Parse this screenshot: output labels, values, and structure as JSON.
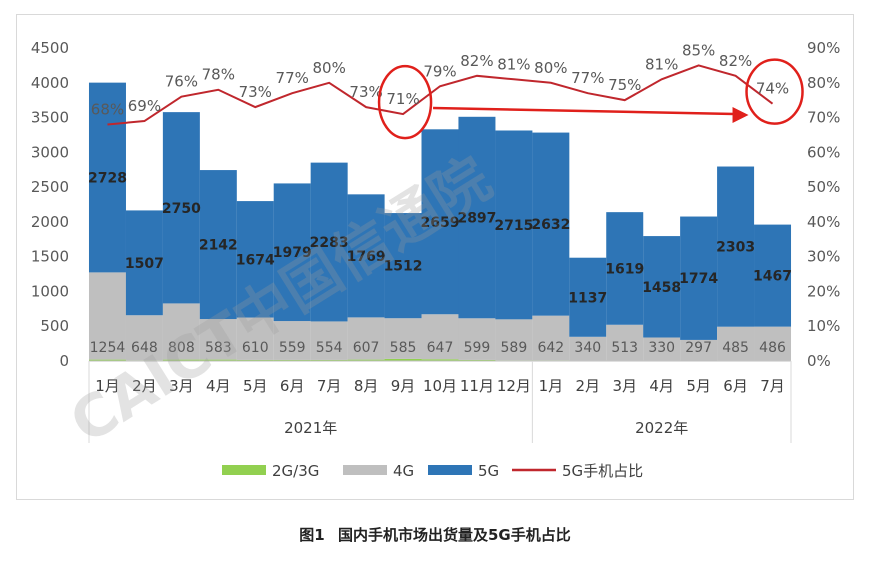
{
  "caption": {
    "label": "图1",
    "text": "国内手机市场出货量及5G手机占比"
  },
  "watermark": {
    "text": "CAICT中国信通院"
  },
  "chart_data": {
    "type": "bar",
    "stacked": true,
    "categories": [
      "1月",
      "2月",
      "3月",
      "4月",
      "5月",
      "6月",
      "7月",
      "8月",
      "9月",
      "10月",
      "11月",
      "12月",
      "1月",
      "2月",
      "3月",
      "4月",
      "5月",
      "6月",
      "7月"
    ],
    "year_groups": [
      {
        "label": "2021年",
        "count": 12
      },
      {
        "label": "2022年",
        "count": 7
      }
    ],
    "series": [
      {
        "name": "2G/3G",
        "color": "#92d050",
        "values": [
          20,
          10,
          20,
          20,
          15,
          15,
          15,
          20,
          30,
          25,
          15,
          10,
          10,
          8,
          8,
          8,
          6,
          8,
          8
        ]
      },
      {
        "name": "4G",
        "color": "#bfbfbf",
        "values": [
          1254,
          648,
          808,
          583,
          610,
          559,
          554,
          607,
          585,
          647,
          599,
          589,
          642,
          340,
          513,
          330,
          297,
          485,
          486
        ]
      },
      {
        "name": "5G",
        "color": "#2e75b6",
        "values": [
          2728,
          1507,
          2750,
          2142,
          1674,
          1979,
          2283,
          1769,
          1512,
          2659,
          2897,
          2715,
          2632,
          1137,
          1619,
          1458,
          1774,
          2303,
          1467
        ]
      }
    ],
    "line": {
      "name": "5G手机占比",
      "color": "#c0272d",
      "values": [
        68,
        69,
        76,
        78,
        73,
        77,
        80,
        73,
        71,
        79,
        82,
        81,
        80,
        77,
        75,
        81,
        85,
        82,
        74
      ],
      "labels": [
        "68%",
        "69%",
        "76%",
        "78%",
        "73%",
        "77%",
        "80%",
        "73%",
        "71%",
        "79%",
        "82%",
        "81%",
        "80%",
        "77%",
        "75%",
        "81%",
        "85%",
        "82%",
        "74%"
      ]
    },
    "y_left": {
      "min": 0,
      "max": 4500,
      "ticks": [
        0,
        500,
        1000,
        1500,
        2000,
        2500,
        3000,
        3500,
        4000,
        4500
      ]
    },
    "y_right": {
      "min": 0,
      "max": 90,
      "ticks": [
        "0%",
        "10%",
        "20%",
        "30%",
        "40%",
        "50%",
        "60%",
        "70%",
        "80%",
        "90%"
      ]
    },
    "legend": {
      "position": "bottom"
    },
    "annotations": {
      "highlight_circles": [
        "9月",
        "7月"
      ],
      "arrow": "9月 → 7月",
      "color": "#e0201b"
    }
  }
}
